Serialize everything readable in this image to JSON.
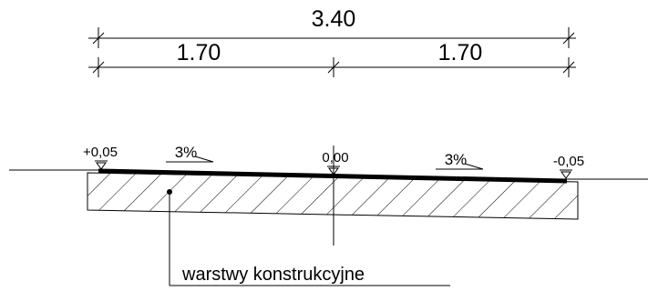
{
  "dimensions": {
    "total": "3.40",
    "left_half": "1.70",
    "right_half": "1.70"
  },
  "levels": {
    "left": "+0,05",
    "center": "0,00",
    "right": "-0,05"
  },
  "slopes": {
    "left": "3%",
    "right": "3%"
  },
  "callout": {
    "label": "warstwy konstrukcyjne"
  }
}
